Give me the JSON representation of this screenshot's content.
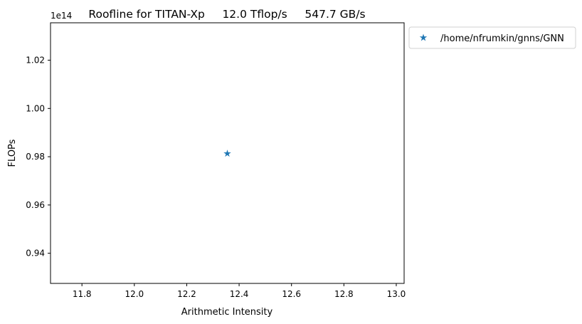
{
  "chart_data": {
    "type": "scatter",
    "title": "Roofline for TITAN-Xp     12.0 Tflop/s     547.7 GB/s",
    "xlabel": "Arithmetic Intensity",
    "ylabel": "FLOPs",
    "y_offset_text": "1e14",
    "xlim": [
      11.68,
      13.03
    ],
    "ylim": [
      0.9275,
      1.0355
    ],
    "y_scale_factor": 100000000000000.0,
    "xticks": [
      11.8,
      12.0,
      12.2,
      12.4,
      12.6,
      12.8,
      13.0
    ],
    "xtick_labels": [
      "11.8",
      "12.0",
      "12.2",
      "12.4",
      "12.6",
      "12.8",
      "13.0"
    ],
    "yticks": [
      0.94,
      0.96,
      0.98,
      1.0,
      1.02
    ],
    "ytick_labels": [
      "0.94",
      "0.96",
      "0.98",
      "1.00",
      "1.02"
    ],
    "grid": false,
    "legend_position": "outside-right-top",
    "series": [
      {
        "name": "/home/nfrumkin/gnns/GNN",
        "marker": "star",
        "color": "#1f77b4",
        "points": [
          {
            "x": 12.355,
            "y": 0.9813
          }
        ]
      }
    ]
  }
}
